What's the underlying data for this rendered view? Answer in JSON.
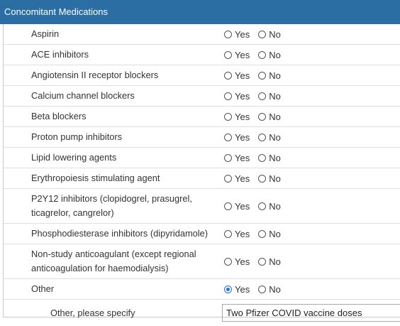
{
  "header": {
    "title": "Concomitant Medications"
  },
  "options": [
    "Yes",
    "No"
  ],
  "rows": [
    {
      "label": "Aspirin"
    },
    {
      "label": "ACE inhibitors"
    },
    {
      "label": "Angiotensin II receptor blockers"
    },
    {
      "label": "Calcium channel blockers"
    },
    {
      "label": "Beta blockers"
    },
    {
      "label": "Proton pump inhibitors"
    },
    {
      "label": "Lipid lowering agents"
    },
    {
      "label": "Erythropoiesis stimulating agent"
    },
    {
      "label": "P2Y12 inhibitors (clopidogrel, prasugrel, ticagrelor, cangrelor)"
    },
    {
      "label": "Phosphodiesterase inhibitors (dipyridamole)"
    },
    {
      "label": "Non-study anticoagulant (except regional anticoagulation for haemodialysis)"
    },
    {
      "label": "Other",
      "selected": 0
    }
  ],
  "specify": {
    "label": "Other, please specify",
    "value": "Two Pfizer COVID vaccine doses"
  }
}
